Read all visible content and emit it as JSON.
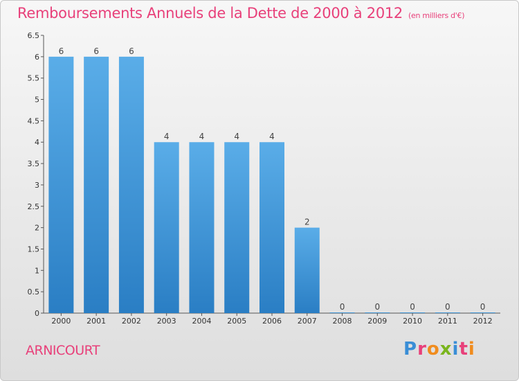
{
  "title": "Remboursements Annuels de la Dette de 2000 à 2012",
  "subtitle": "(en milliers d'€)",
  "commune": "ARNICOURT",
  "logo": {
    "text": "Proxiti",
    "colors": [
      "#3a8ed6",
      "#e8407a",
      "#f08c1e",
      "#7ab51d",
      "#3a8ed6",
      "#e8407a",
      "#f08c1e"
    ]
  },
  "colors": {
    "bar_top": "#5aade8",
    "bar_bottom": "#2a7ec4",
    "accent": "#e8407a"
  },
  "chart_data": {
    "type": "bar",
    "title": "Remboursements Annuels de la Dette de 2000 à 2012",
    "subtitle": "(en milliers d'€)",
    "categories": [
      "2000",
      "2001",
      "2002",
      "2003",
      "2004",
      "2005",
      "2006",
      "2007",
      "2008",
      "2009",
      "2010",
      "2011",
      "2012"
    ],
    "values": [
      6,
      6,
      6,
      4,
      4,
      4,
      4,
      2,
      0,
      0,
      0,
      0,
      0
    ],
    "value_labels": [
      "6",
      "6",
      "6",
      "4",
      "4",
      "4",
      "4",
      "2",
      "0",
      "0",
      "0",
      "0",
      "0"
    ],
    "ylim": [
      0,
      6.5
    ],
    "yticks": [
      0,
      0.5,
      1,
      1.5,
      2,
      2.5,
      3,
      3.5,
      4,
      4.5,
      5,
      5.5,
      6,
      6.5
    ],
    "ytick_labels": [
      "0",
      "0.5",
      "1",
      "1.5",
      "2",
      "2.5",
      "3",
      "3.5",
      "4",
      "4.5",
      "5",
      "5.5",
      "6",
      "6.5"
    ],
    "grid": false,
    "legend": "none"
  }
}
